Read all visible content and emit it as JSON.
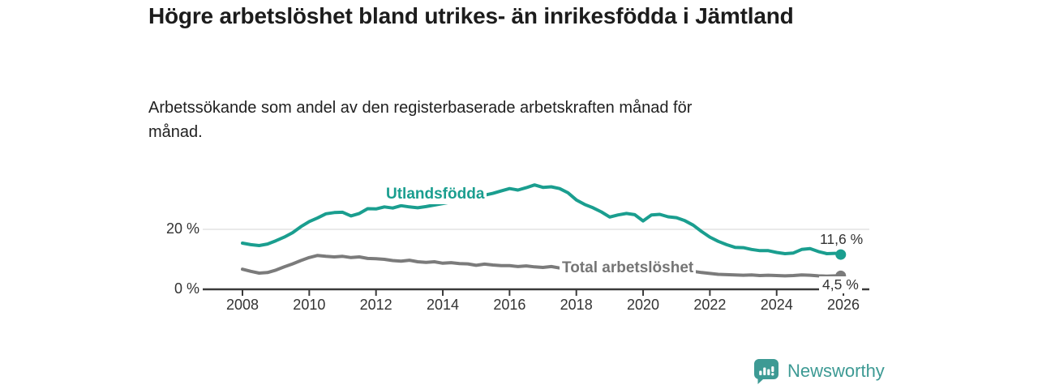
{
  "header": {
    "title": "Högre arbetslöshet bland utrikes- än inrikesfödda i Jämtland",
    "subtitle": "Arbetssökande som andel av den registerbaserade arbetskraften månad för månad."
  },
  "chart_data": {
    "type": "line",
    "title": "Högre arbetslöshet bland utrikes- än inrikesfödda i Jämtland",
    "subtitle": "Arbetssökande som andel av den registerbaserade arbetskraften månad för månad.",
    "xlabel": "",
    "ylabel": "",
    "unit": "%",
    "xlim": [
      2007.8,
      2026.8
    ],
    "ylim": [
      0,
      38
    ],
    "grid": "single horizontal gridline at 20 %, baseline axis at 0 %",
    "legend_position": "inline labels on lines, end-value labels at right",
    "x_ticks": [
      2008,
      2010,
      2012,
      2014,
      2016,
      2018,
      2020,
      2022,
      2024,
      2026
    ],
    "y_ticks": [
      {
        "value": 20,
        "label": "20 %"
      },
      {
        "value": 0,
        "label": "0 %"
      }
    ],
    "x": [
      2008,
      2008.25,
      2008.5,
      2008.75,
      2009,
      2009.25,
      2009.5,
      2009.75,
      2010,
      2010.25,
      2010.5,
      2010.75,
      2011,
      2011.25,
      2011.5,
      2011.75,
      2012,
      2012.25,
      2012.5,
      2012.75,
      2013,
      2013.25,
      2013.5,
      2013.75,
      2014,
      2014.25,
      2014.5,
      2014.75,
      2015,
      2015.25,
      2015.5,
      2015.75,
      2016,
      2016.25,
      2016.5,
      2016.75,
      2017,
      2017.25,
      2017.5,
      2017.75,
      2018,
      2018.25,
      2018.5,
      2018.75,
      2019,
      2019.25,
      2019.5,
      2019.75,
      2020,
      2020.25,
      2020.5,
      2020.75,
      2021,
      2021.25,
      2021.5,
      2021.75,
      2022,
      2022.25,
      2022.5,
      2022.75,
      2023,
      2023.25,
      2023.5,
      2023.75,
      2024,
      2024.25,
      2024.5,
      2024.75,
      2025,
      2025.25,
      2025.5,
      2025.75,
      2025.92
    ],
    "series": [
      {
        "name": "Utlandsfödda",
        "color": "#1a9e8f",
        "end_label": "11,6 %",
        "end_value": 11.6,
        "values": [
          15.4,
          14.9,
          14.6,
          15.1,
          16.2,
          17.4,
          18.9,
          20.9,
          22.6,
          23.8,
          25.2,
          25.6,
          25.7,
          24.5,
          25.3,
          26.9,
          26.8,
          27.5,
          27.1,
          27.9,
          27.5,
          27.2,
          27.6,
          28.1,
          28.6,
          29.1,
          29.6,
          30.2,
          30.8,
          31.4,
          32.0,
          32.8,
          33.6,
          33.1,
          33.9,
          34.8,
          34.0,
          34.2,
          33.6,
          32.2,
          29.8,
          28.3,
          27.2,
          25.8,
          24.1,
          24.8,
          25.3,
          24.9,
          22.8,
          24.8,
          25.0,
          24.2,
          23.9,
          22.9,
          21.4,
          19.3,
          17.4,
          16.0,
          14.9,
          14.0,
          13.9,
          13.3,
          12.9,
          12.9,
          12.3,
          11.9,
          12.1,
          13.3,
          13.6,
          12.6,
          11.9,
          12.0,
          11.6
        ]
      },
      {
        "name": "Total arbetslöshet",
        "color": "#7b7b7b",
        "end_label": "4,5 %",
        "end_value": 4.5,
        "values": [
          6.7,
          6.0,
          5.4,
          5.6,
          6.4,
          7.5,
          8.5,
          9.6,
          10.6,
          11.3,
          11.0,
          10.8,
          11.0,
          10.6,
          10.8,
          10.3,
          10.2,
          10.0,
          9.6,
          9.4,
          9.7,
          9.2,
          9.0,
          9.2,
          8.7,
          8.9,
          8.6,
          8.5,
          8.0,
          8.4,
          8.1,
          7.9,
          7.9,
          7.6,
          7.8,
          7.5,
          7.3,
          7.6,
          7.1,
          7.0,
          6.8,
          6.9,
          6.6,
          6.4,
          6.2,
          6.3,
          6.1,
          6.2,
          6.4,
          7.1,
          7.3,
          7.0,
          6.7,
          6.4,
          6.0,
          5.6,
          5.3,
          5.0,
          4.9,
          4.8,
          4.7,
          4.8,
          4.6,
          4.7,
          4.6,
          4.5,
          4.6,
          4.8,
          4.7,
          4.5,
          4.4,
          4.5,
          4.5
        ]
      }
    ]
  },
  "footer": {
    "brand": "Newsworthy",
    "brand_color": "#3d9a94",
    "logo_icon": "bar-chart-speech-bubble"
  }
}
